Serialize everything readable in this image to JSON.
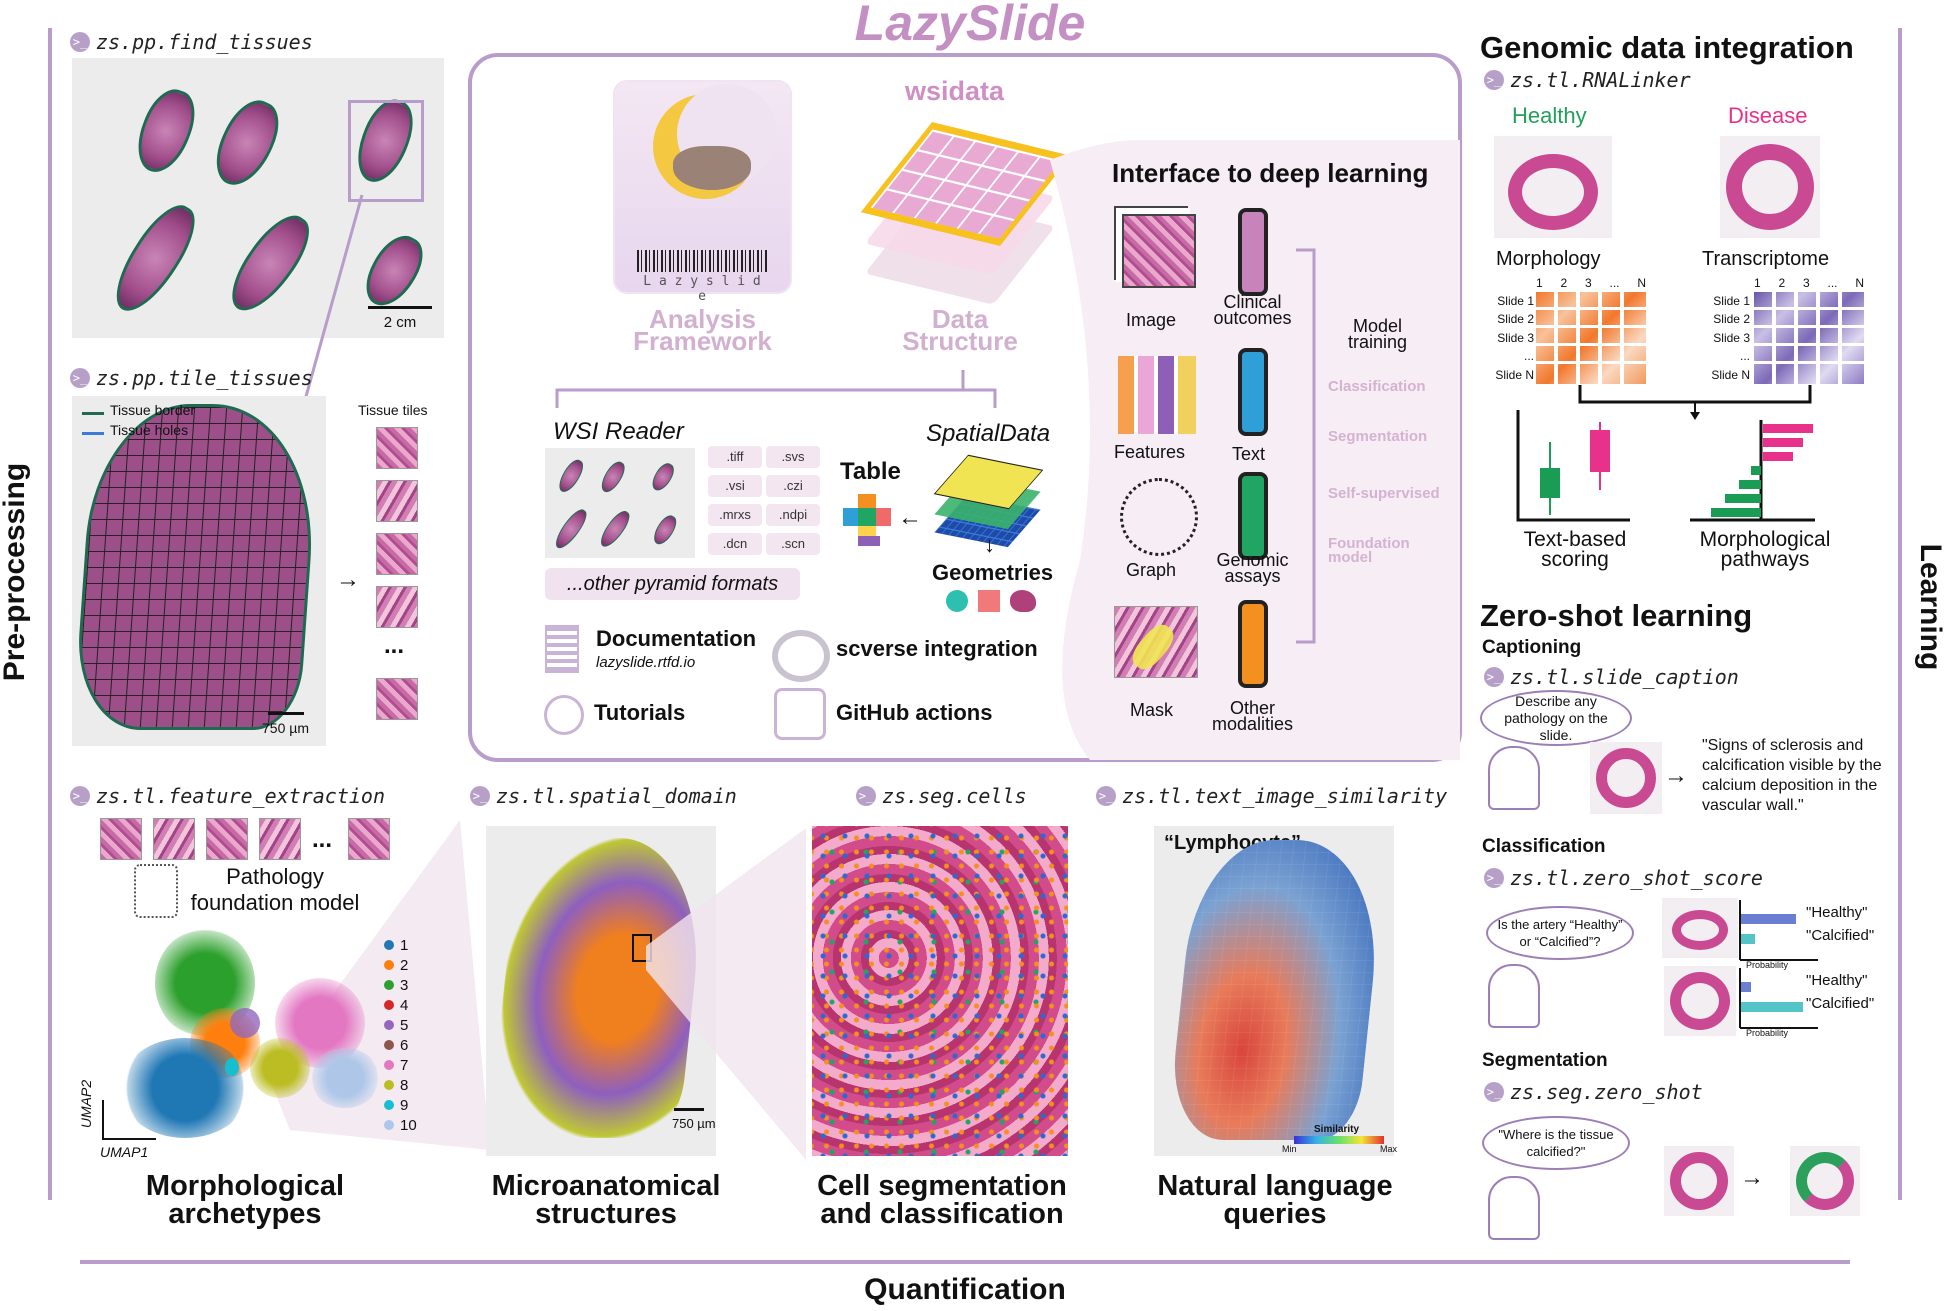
{
  "header": {
    "title": "LazySlide"
  },
  "side_labels": {
    "left": "Pre-processing",
    "right": "Learning",
    "bottom": "Quantification"
  },
  "preprocessing": {
    "find_tissues": "zs.pp.find_tissues",
    "scale_bar": "2 cm",
    "tile_tissues": "zs.pp.tile_tissues",
    "legend_border": "Tissue border",
    "legend_holes": "Tissue holes",
    "tiles_label": "Tissue tiles",
    "ellipsis": "...",
    "scale_tile": "750 µm"
  },
  "center": {
    "wsidata": "wsidata",
    "barcode_text": "L a z y s l i d e",
    "analysis_framework": "Analysis Framework",
    "data_structure": "Data Structure",
    "wsi_reader": "WSI Reader",
    "spatialdata": "SpatialData",
    "formats": [
      ".tiff",
      ".svs",
      ".vsi",
      ".czi",
      ".mrxs",
      ".ndpi",
      ".dcn",
      ".scn"
    ],
    "other_formats": "...other pyramid formats",
    "table": "Table",
    "geometries": "Geometries",
    "documentation": "Documentation",
    "doc_url": "lazyslide.rtfd.io",
    "scverse": "scverse integration",
    "tutorials": "Tutorials",
    "github": "GitHub actions"
  },
  "deep_learning": {
    "title": "Interface to deep learning",
    "inputs": [
      "Image",
      "Features",
      "Graph",
      "Mask"
    ],
    "outputs": [
      "Clinical outcomes",
      "Text",
      "Genomic assays",
      "Other modalities"
    ],
    "model_training": "Model training",
    "tasks": [
      "Classification",
      "Segmentation",
      "Self-supervised",
      "Foundation model"
    ],
    "colors": {
      "clinical": "#c983bb",
      "text": "#2f9fd8",
      "genomic": "#20a562",
      "other": "#f39020"
    }
  },
  "genomic": {
    "title": "Genomic data integration",
    "func": "zs.tl.RNALinker",
    "healthy": "Healthy",
    "disease": "Disease",
    "morphology": "Morphology",
    "transcriptome": "Transcriptome",
    "cols": [
      "1",
      "2",
      "3",
      "...",
      "N"
    ],
    "rows": [
      "Slide 1",
      "Slide 2",
      "Slide 3",
      "...",
      "Slide N"
    ],
    "text_scoring": "Text-based scoring",
    "morph_pathways": "Morphological pathways"
  },
  "zero_shot": {
    "title": "Zero-shot learning",
    "captioning": "Captioning",
    "caption_func": "zs.tl.slide_caption",
    "caption_question": "Describe any pathology on the slide.",
    "caption_answer": "\"Signs of sclerosis and calcification visible by the calcium deposition in the vascular wall.\"",
    "classification": "Classification",
    "score_func": "zs.tl.zero_shot_score",
    "class_question": "Is the artery “Healthy” or “Calcified”?",
    "healthy_label": "\"Healthy\"",
    "calcified_label": "\"Calcified\"",
    "probability": "Probability",
    "segmentation": "Segmentation",
    "seg_func": "zs.seg.zero_shot",
    "seg_question": "\"Where is the tissue calcified?\""
  },
  "quantification": {
    "feature_func": "zs.tl.feature_extraction",
    "ellipsis": "...",
    "foundation_model": "Pathology foundation model",
    "clusters": [
      "1",
      "2",
      "3",
      "4",
      "5",
      "6",
      "7",
      "8",
      "9",
      "10"
    ],
    "cluster_colors": [
      "#1f77b4",
      "#ff7f0e",
      "#2ca02c",
      "#d62728",
      "#9467bd",
      "#8c564b",
      "#e377c2",
      "#bcbd22",
      "#17becf",
      "#aec7e8"
    ],
    "umap1": "UMAP1",
    "umap2": "UMAP2",
    "morph_archetypes": "Morphological archetypes",
    "spatial_func": "zs.tl.spatial_domain",
    "scale": "750 µm",
    "microanatomical": "Microanatomical structures",
    "cells_func": "zs.seg.cells",
    "cell_seg": "Cell segmentation and classification",
    "similarity_func": "zs.tl.text_image_similarity",
    "lymphocyte": "“Lymphocyte”",
    "similarity": "Similarity",
    "min": "Min",
    "max": "Max",
    "nl_queries": "Natural language queries"
  }
}
